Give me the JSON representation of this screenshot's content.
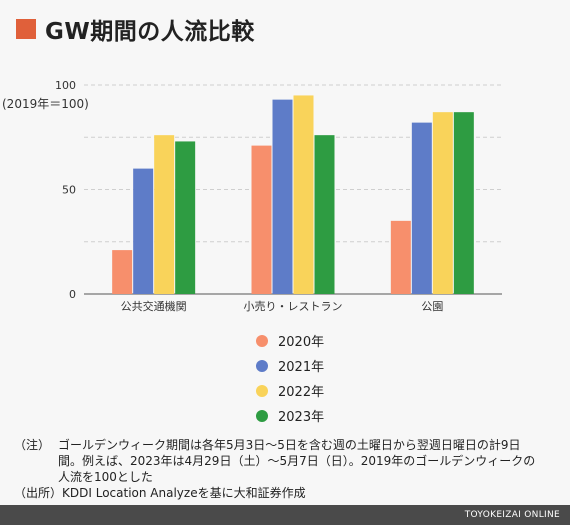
{
  "header": {
    "title": "GW期間の人流比較"
  },
  "chart_data": {
    "type": "bar",
    "title": "GW期間の人流比較",
    "ylabel": "(2019年＝100)",
    "xlabel": "",
    "ylim": [
      0,
      100
    ],
    "yticks": [
      0,
      50,
      100
    ],
    "categories": [
      "公共交通機関",
      "小売り・レストラン",
      "公園"
    ],
    "series": [
      {
        "name": "2020年",
        "color": "#f78f6c",
        "values": [
          21,
          71,
          35
        ]
      },
      {
        "name": "2021年",
        "color": "#5e7cc8",
        "values": [
          60,
          93,
          82
        ]
      },
      {
        "name": "2022年",
        "color": "#f9d35a",
        "values": [
          76,
          95,
          87
        ]
      },
      {
        "name": "2023年",
        "color": "#2e9c42",
        "values": [
          73,
          76,
          87
        ]
      }
    ],
    "grid": true,
    "legend_position": "bottom"
  },
  "notes": [
    {
      "tag": "（注）",
      "text": "ゴールデンウィーク期間は各年5月3日〜5日を含む週の土曜日から翌週日曜日の計9日間。例えば、2023年は4月29日（土）〜5月7日（日）。2019年のゴールデンウィークの人流を100とした"
    },
    {
      "tag": "（出所）",
      "text": "KDDI Location Analyzeを基に大和証券作成"
    }
  ],
  "footer": {
    "brand": "TOYOKEIZAI ONLINE"
  }
}
